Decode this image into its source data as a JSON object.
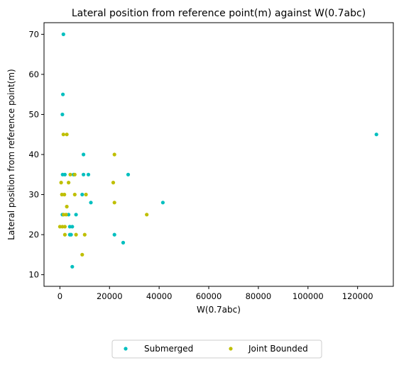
{
  "chart_data": {
    "type": "scatter",
    "title": "Lateral position from reference point(m) against W(0.7abc)",
    "xlabel": "W(0.7abc)",
    "ylabel": "Lateral position from reference point(m)",
    "xlim": [
      -6400,
      134400
    ],
    "ylim": [
      7.1,
      72.9
    ],
    "xticks": [
      0,
      20000,
      40000,
      60000,
      80000,
      100000,
      120000
    ],
    "yticks": [
      10,
      20,
      30,
      40,
      50,
      60,
      70
    ],
    "grid": false,
    "legend_position": "bottom-center",
    "series": [
      {
        "name": "Submerged",
        "color": "#00bfbf",
        "points": [
          [
            1400,
            70
          ],
          [
            1200,
            55
          ],
          [
            1000,
            50
          ],
          [
            127600,
            45
          ],
          [
            9500,
            40
          ],
          [
            1100,
            35
          ],
          [
            2000,
            35
          ],
          [
            5500,
            35
          ],
          [
            9500,
            35
          ],
          [
            11500,
            35
          ],
          [
            27500,
            35
          ],
          [
            9000,
            30
          ],
          [
            12500,
            28
          ],
          [
            41500,
            28
          ],
          [
            1000,
            25
          ],
          [
            3500,
            25
          ],
          [
            6500,
            25
          ],
          [
            4000,
            22
          ],
          [
            5000,
            22
          ],
          [
            4000,
            20
          ],
          [
            4500,
            20
          ],
          [
            22000,
            20
          ],
          [
            25500,
            18
          ],
          [
            5000,
            12
          ]
        ]
      },
      {
        "name": "Joint Bounded",
        "color": "#bfbf00",
        "points": [
          [
            1400,
            45
          ],
          [
            2800,
            45
          ],
          [
            22000,
            40
          ],
          [
            4200,
            35
          ],
          [
            6000,
            35
          ],
          [
            500,
            33
          ],
          [
            3500,
            33
          ],
          [
            21500,
            33
          ],
          [
            800,
            30
          ],
          [
            1800,
            30
          ],
          [
            6000,
            30
          ],
          [
            10500,
            30
          ],
          [
            22000,
            28
          ],
          [
            2800,
            27
          ],
          [
            1500,
            25
          ],
          [
            2500,
            25
          ],
          [
            35000,
            25
          ],
          [
            0,
            22
          ],
          [
            1000,
            22
          ],
          [
            2000,
            22
          ],
          [
            2000,
            20
          ],
          [
            6500,
            20
          ],
          [
            10000,
            20
          ],
          [
            9000,
            15
          ]
        ]
      }
    ]
  }
}
